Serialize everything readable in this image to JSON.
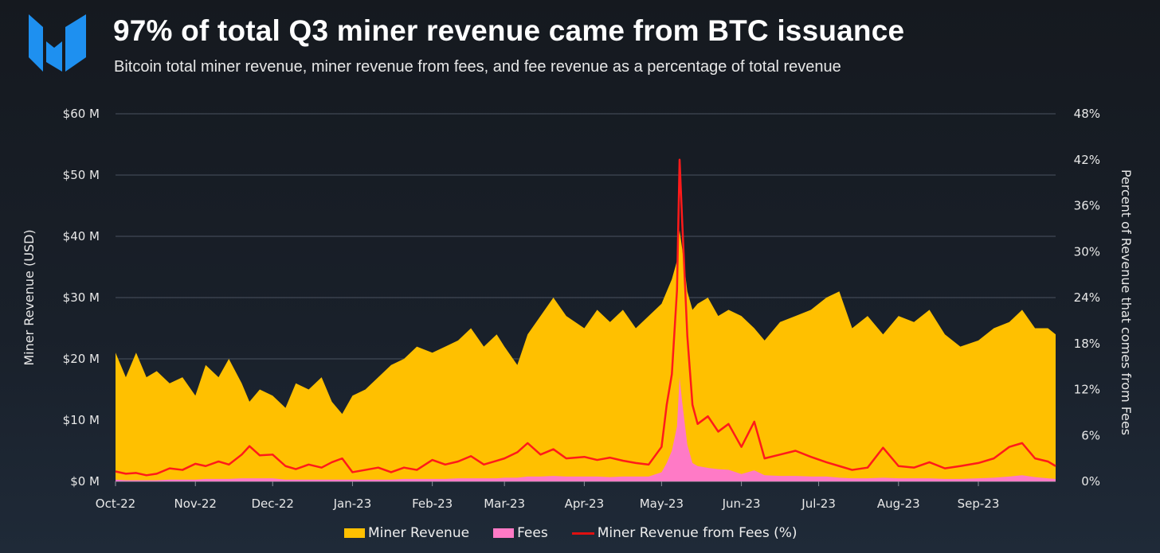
{
  "header": {
    "title": "97% of total Q3 miner revenue came from BTC issuance",
    "subtitle": "Bitcoin total miner revenue, miner revenue from fees, and fee revenue as a percentage of total revenue",
    "logo_text": "M"
  },
  "colors": {
    "revenue": "#ffc000",
    "fees": "#ff7ac6",
    "pct": "#ff1a1a",
    "grid": "#4a5260"
  },
  "chart_data": {
    "type": "area",
    "title": "97% of total Q3 miner revenue came from BTC issuance",
    "ylabel": "Miner Revenue (USD)",
    "y2label": "Percent of Revenue that comes from Fees",
    "ylim": [
      0,
      60
    ],
    "y2lim": [
      0,
      48
    ],
    "yticks": [
      "$0 M",
      "$10 M",
      "$20 M",
      "$30 M",
      "$40 M",
      "$50 M",
      "$60 M"
    ],
    "y2ticks": [
      "0%",
      "6%",
      "12%",
      "18%",
      "24%",
      "30%",
      "36%",
      "42%",
      "48%"
    ],
    "xticks": [
      {
        "label": "Oct-22",
        "day": 0
      },
      {
        "label": "Nov-22",
        "day": 31
      },
      {
        "label": "Dec-22",
        "day": 61
      },
      {
        "label": "Jan-23",
        "day": 92
      },
      {
        "label": "Feb-23",
        "day": 123
      },
      {
        "label": "Mar-23",
        "day": 151
      },
      {
        "label": "Apr-23",
        "day": 182
      },
      {
        "label": "May-23",
        "day": 212
      },
      {
        "label": "Jun-23",
        "day": 243
      },
      {
        "label": "Jul-23",
        "day": 273
      },
      {
        "label": "Aug-23",
        "day": 304
      },
      {
        "label": "Sep-23",
        "day": 335
      }
    ],
    "xmax_day": 365,
    "legend": [
      "Miner Revenue",
      "Fees",
      "Miner Revenue from Fees (%)"
    ],
    "legend_position": "bottom",
    "points": [
      {
        "day": 0,
        "rev": 21,
        "fee": 0.3,
        "pct": 1.3
      },
      {
        "day": 4,
        "rev": 17,
        "fee": 0.2,
        "pct": 1.0
      },
      {
        "day": 8,
        "rev": 21,
        "fee": 0.2,
        "pct": 1.1
      },
      {
        "day": 12,
        "rev": 17,
        "fee": 0.2,
        "pct": 0.8
      },
      {
        "day": 16,
        "rev": 18,
        "fee": 0.2,
        "pct": 1.0
      },
      {
        "day": 21,
        "rev": 16,
        "fee": 0.3,
        "pct": 1.7
      },
      {
        "day": 26,
        "rev": 17,
        "fee": 0.3,
        "pct": 1.5
      },
      {
        "day": 31,
        "rev": 14,
        "fee": 0.3,
        "pct": 2.3
      },
      {
        "day": 35,
        "rev": 19,
        "fee": 0.4,
        "pct": 2.0
      },
      {
        "day": 40,
        "rev": 17,
        "fee": 0.4,
        "pct": 2.6
      },
      {
        "day": 44,
        "rev": 20,
        "fee": 0.4,
        "pct": 2.2
      },
      {
        "day": 49,
        "rev": 16,
        "fee": 0.5,
        "pct": 3.5
      },
      {
        "day": 52,
        "rev": 13,
        "fee": 0.5,
        "pct": 4.6
      },
      {
        "day": 56,
        "rev": 15,
        "fee": 0.5,
        "pct": 3.4
      },
      {
        "day": 61,
        "rev": 14,
        "fee": 0.5,
        "pct": 3.5
      },
      {
        "day": 66,
        "rev": 12,
        "fee": 0.3,
        "pct": 2.0
      },
      {
        "day": 70,
        "rev": 16,
        "fee": 0.3,
        "pct": 1.6
      },
      {
        "day": 75,
        "rev": 15,
        "fee": 0.3,
        "pct": 2.2
      },
      {
        "day": 80,
        "rev": 17,
        "fee": 0.3,
        "pct": 1.8
      },
      {
        "day": 84,
        "rev": 13,
        "fee": 0.3,
        "pct": 2.5
      },
      {
        "day": 88,
        "rev": 11,
        "fee": 0.3,
        "pct": 3.0
      },
      {
        "day": 92,
        "rev": 14,
        "fee": 0.3,
        "pct": 1.2
      },
      {
        "day": 97,
        "rev": 15,
        "fee": 0.3,
        "pct": 1.5
      },
      {
        "day": 102,
        "rev": 17,
        "fee": 0.3,
        "pct": 1.8
      },
      {
        "day": 107,
        "rev": 19,
        "fee": 0.3,
        "pct": 1.2
      },
      {
        "day": 112,
        "rev": 20,
        "fee": 0.4,
        "pct": 1.8
      },
      {
        "day": 117,
        "rev": 22,
        "fee": 0.4,
        "pct": 1.5
      },
      {
        "day": 123,
        "rev": 21,
        "fee": 0.4,
        "pct": 2.8
      },
      {
        "day": 128,
        "rev": 22,
        "fee": 0.4,
        "pct": 2.2
      },
      {
        "day": 133,
        "rev": 23,
        "fee": 0.5,
        "pct": 2.6
      },
      {
        "day": 138,
        "rev": 25,
        "fee": 0.5,
        "pct": 3.3
      },
      {
        "day": 143,
        "rev": 22,
        "fee": 0.5,
        "pct": 2.2
      },
      {
        "day": 148,
        "rev": 24,
        "fee": 0.5,
        "pct": 2.7
      },
      {
        "day": 151,
        "rev": 22,
        "fee": 0.6,
        "pct": 3.0
      },
      {
        "day": 156,
        "rev": 19,
        "fee": 0.6,
        "pct": 3.8
      },
      {
        "day": 160,
        "rev": 24,
        "fee": 0.8,
        "pct": 5.0
      },
      {
        "day": 165,
        "rev": 27,
        "fee": 0.8,
        "pct": 3.5
      },
      {
        "day": 170,
        "rev": 30,
        "fee": 0.9,
        "pct": 4.2
      },
      {
        "day": 175,
        "rev": 27,
        "fee": 0.8,
        "pct": 3.0
      },
      {
        "day": 182,
        "rev": 25,
        "fee": 0.8,
        "pct": 3.2
      },
      {
        "day": 187,
        "rev": 28,
        "fee": 0.8,
        "pct": 2.8
      },
      {
        "day": 192,
        "rev": 26,
        "fee": 0.7,
        "pct": 3.1
      },
      {
        "day": 197,
        "rev": 28,
        "fee": 0.8,
        "pct": 2.7
      },
      {
        "day": 202,
        "rev": 25,
        "fee": 0.8,
        "pct": 2.4
      },
      {
        "day": 207,
        "rev": 27,
        "fee": 0.8,
        "pct": 2.2
      },
      {
        "day": 212,
        "rev": 29,
        "fee": 1.5,
        "pct": 4.5
      },
      {
        "day": 214,
        "rev": 31,
        "fee": 3,
        "pct": 10
      },
      {
        "day": 216,
        "rev": 33,
        "fee": 5,
        "pct": 14
      },
      {
        "day": 218,
        "rev": 36,
        "fee": 9,
        "pct": 25
      },
      {
        "day": 219,
        "rev": 41,
        "fee": 17,
        "pct": 42
      },
      {
        "day": 220,
        "rev": 38,
        "fee": 13,
        "pct": 34
      },
      {
        "day": 222,
        "rev": 31,
        "fee": 6,
        "pct": 19
      },
      {
        "day": 224,
        "rev": 28,
        "fee": 3,
        "pct": 10
      },
      {
        "day": 226,
        "rev": 29,
        "fee": 2.5,
        "pct": 7.5
      },
      {
        "day": 230,
        "rev": 30,
        "fee": 2.2,
        "pct": 8.5
      },
      {
        "day": 234,
        "rev": 27,
        "fee": 2,
        "pct": 6.5
      },
      {
        "day": 238,
        "rev": 28,
        "fee": 1.9,
        "pct": 7.5
      },
      {
        "day": 243,
        "rev": 27,
        "fee": 1.2,
        "pct": 4.5
      },
      {
        "day": 248,
        "rev": 25,
        "fee": 1.8,
        "pct": 7.8
      },
      {
        "day": 252,
        "rev": 23,
        "fee": 1.0,
        "pct": 3.0
      },
      {
        "day": 258,
        "rev": 26,
        "fee": 0.9,
        "pct": 3.5
      },
      {
        "day": 264,
        "rev": 27,
        "fee": 0.9,
        "pct": 4.0
      },
      {
        "day": 270,
        "rev": 28,
        "fee": 0.8,
        "pct": 3.2
      },
      {
        "day": 276,
        "rev": 30,
        "fee": 0.8,
        "pct": 2.5
      },
      {
        "day": 281,
        "rev": 31,
        "fee": 0.6,
        "pct": 2.0
      },
      {
        "day": 286,
        "rev": 25,
        "fee": 0.5,
        "pct": 1.5
      },
      {
        "day": 292,
        "rev": 27,
        "fee": 0.5,
        "pct": 1.8
      },
      {
        "day": 298,
        "rev": 24,
        "fee": 0.6,
        "pct": 4.4
      },
      {
        "day": 304,
        "rev": 27,
        "fee": 0.5,
        "pct": 2.0
      },
      {
        "day": 310,
        "rev": 26,
        "fee": 0.5,
        "pct": 1.8
      },
      {
        "day": 316,
        "rev": 28,
        "fee": 0.5,
        "pct": 2.5
      },
      {
        "day": 322,
        "rev": 24,
        "fee": 0.4,
        "pct": 1.7
      },
      {
        "day": 328,
        "rev": 22,
        "fee": 0.4,
        "pct": 2.0
      },
      {
        "day": 335,
        "rev": 23,
        "fee": 0.5,
        "pct": 2.4
      },
      {
        "day": 341,
        "rev": 25,
        "fee": 0.6,
        "pct": 3.0
      },
      {
        "day": 347,
        "rev": 26,
        "fee": 0.8,
        "pct": 4.5
      },
      {
        "day": 352,
        "rev": 28,
        "fee": 1.0,
        "pct": 5.0
      },
      {
        "day": 357,
        "rev": 25,
        "fee": 0.7,
        "pct": 3.0
      },
      {
        "day": 362,
        "rev": 25,
        "fee": 0.5,
        "pct": 2.6
      },
      {
        "day": 365,
        "rev": 24,
        "fee": 0.4,
        "pct": 2.0
      }
    ]
  }
}
